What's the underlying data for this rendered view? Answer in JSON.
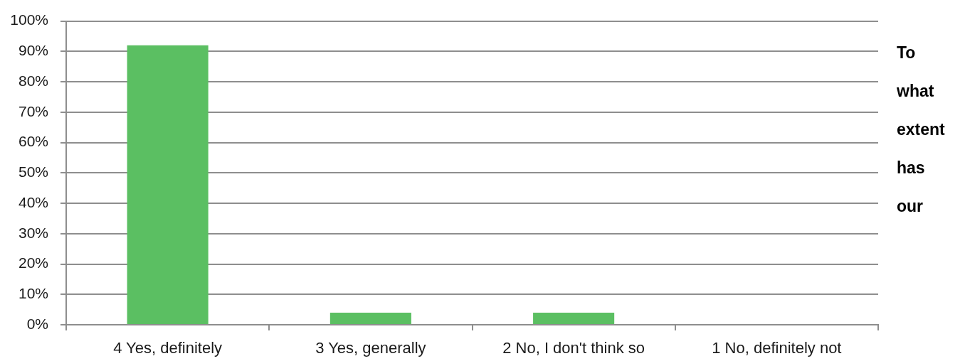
{
  "chart_data": {
    "type": "bar",
    "categories": [
      "4 Yes, definitely",
      "3 Yes, generally",
      "2 No, I don't think so",
      "1 No, definitely not"
    ],
    "series": [
      {
        "color": "#5bbf62",
        "values": [
          92,
          4,
          4,
          0
        ]
      }
    ],
    "ylim": [
      0,
      100
    ],
    "yticks": [
      {
        "value": 0,
        "label": "0%"
      },
      {
        "value": 10,
        "label": "10%"
      },
      {
        "value": 20,
        "label": "20%"
      },
      {
        "value": 30,
        "label": "30%"
      },
      {
        "value": 40,
        "label": "40%"
      },
      {
        "value": 50,
        "label": "50%"
      },
      {
        "value": 60,
        "label": "60%"
      },
      {
        "value": 70,
        "label": "70%"
      },
      {
        "value": 80,
        "label": "80%"
      },
      {
        "value": 90,
        "label": "90%"
      },
      {
        "value": 100,
        "label": "100%"
      }
    ],
    "grid": "y",
    "annotations": [
      "To what extent has our"
    ]
  }
}
